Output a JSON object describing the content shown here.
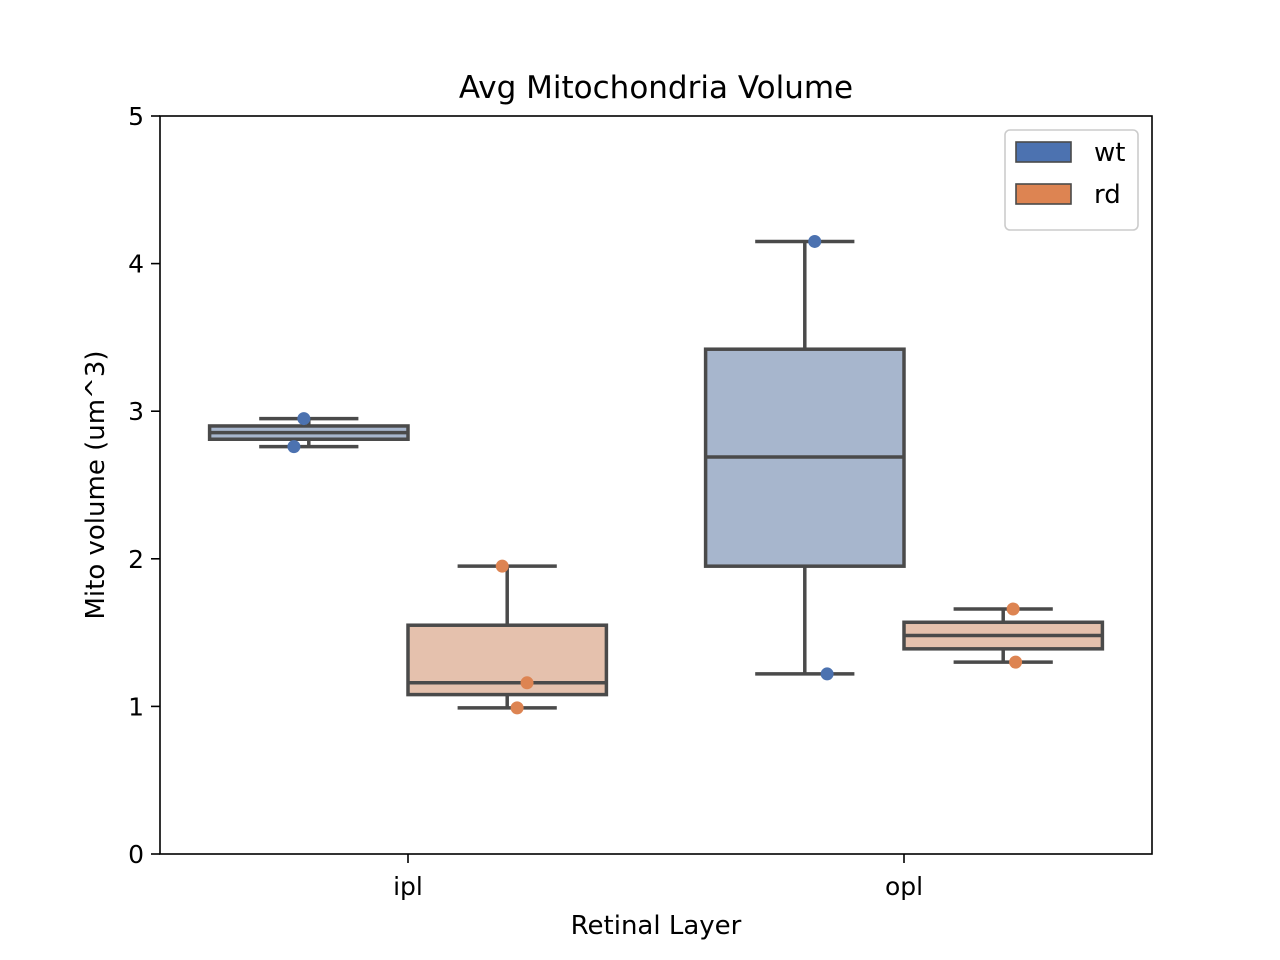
{
  "chart_data": {
    "type": "box",
    "title": "Avg Mitochondria Volume",
    "xlabel": "Retinal Layer",
    "ylabel": "Mito volume (um^3)",
    "ylim": [
      0,
      5
    ],
    "yticks": [
      0,
      1,
      2,
      3,
      4,
      5
    ],
    "categories": [
      "ipl",
      "opl"
    ],
    "grid": false,
    "legend_position": "top-right",
    "series": [
      {
        "name": "wt",
        "color": "#4c72b0",
        "box_color": "#a7b6cd",
        "boxes": [
          {
            "category": "ipl",
            "whisker_low": 2.76,
            "q1": 2.81,
            "median": 2.855,
            "q3": 2.9,
            "whisker_high": 2.95
          },
          {
            "category": "opl",
            "whisker_low": 1.22,
            "q1": 1.95,
            "median": 2.69,
            "q3": 3.42,
            "whisker_high": 4.15
          }
        ],
        "points": [
          {
            "category": "ipl",
            "value": 2.95,
            "jitter": -0.01
          },
          {
            "category": "ipl",
            "value": 2.76,
            "jitter": -0.03
          },
          {
            "category": "opl",
            "value": 4.15,
            "jitter": 0.02
          },
          {
            "category": "opl",
            "value": 1.22,
            "jitter": 0.045
          }
        ]
      },
      {
        "name": "rd",
        "color": "#dd8452",
        "box_color": "#e5c1ad",
        "boxes": [
          {
            "category": "ipl",
            "whisker_low": 0.99,
            "q1": 1.08,
            "median": 1.16,
            "q3": 1.55,
            "whisker_high": 1.95
          },
          {
            "category": "opl",
            "whisker_low": 1.3,
            "q1": 1.39,
            "median": 1.48,
            "q3": 1.57,
            "whisker_high": 1.66
          }
        ],
        "points": [
          {
            "category": "ipl",
            "value": 1.95,
            "jitter": -0.01
          },
          {
            "category": "ipl",
            "value": 1.16,
            "jitter": 0.04
          },
          {
            "category": "ipl",
            "value": 0.99,
            "jitter": 0.02
          },
          {
            "category": "opl",
            "value": 1.66,
            "jitter": 0.02
          },
          {
            "category": "opl",
            "value": 1.3,
            "jitter": 0.025
          }
        ]
      }
    ]
  }
}
